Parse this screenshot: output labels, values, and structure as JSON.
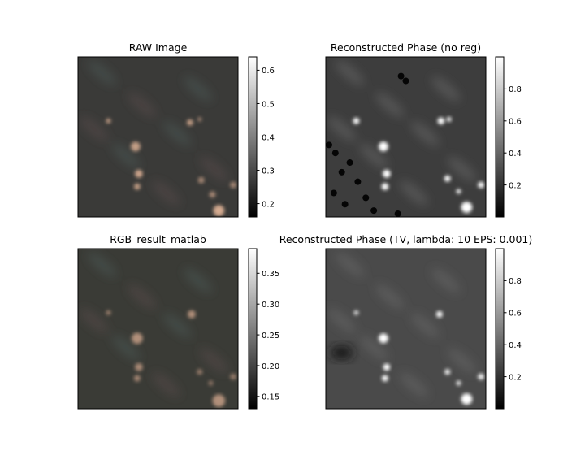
{
  "chart_data": [
    {
      "type": "heatmap",
      "title": "RAW Image",
      "colormap": "image-rgb",
      "colorbar_ticks": [
        0.2,
        0.3,
        0.4,
        0.5,
        0.6
      ],
      "colorbar_range": [
        0.16,
        0.64
      ],
      "background_color": "#3a3a38",
      "spots": [
        {
          "x": 0.19,
          "y": 0.4,
          "r": 0.015,
          "v": 0.9
        },
        {
          "x": 0.36,
          "y": 0.56,
          "r": 0.03,
          "v": 0.85
        },
        {
          "x": 0.7,
          "y": 0.41,
          "r": 0.02,
          "v": 0.85
        },
        {
          "x": 0.76,
          "y": 0.39,
          "r": 0.012,
          "v": 0.8
        },
        {
          "x": 0.38,
          "y": 0.73,
          "r": 0.025,
          "v": 0.9
        },
        {
          "x": 0.37,
          "y": 0.81,
          "r": 0.02,
          "v": 0.85
        },
        {
          "x": 0.77,
          "y": 0.77,
          "r": 0.02,
          "v": 0.7
        },
        {
          "x": 0.84,
          "y": 0.86,
          "r": 0.02,
          "v": 0.7
        },
        {
          "x": 0.97,
          "y": 0.8,
          "r": 0.02,
          "v": 0.7
        },
        {
          "x": 0.88,
          "y": 0.96,
          "r": 0.035,
          "v": 0.95
        }
      ]
    },
    {
      "type": "heatmap",
      "title": "Reconstructed Phase (no reg)",
      "colormap": "gray",
      "colorbar_ticks": [
        0.2,
        0.4,
        0.6,
        0.8
      ],
      "colorbar_range": [
        0.0,
        1.0
      ],
      "background_color": "#3d3d3d",
      "spots": [
        {
          "x": 0.19,
          "y": 0.4,
          "r": 0.02,
          "v": 1.0
        },
        {
          "x": 0.72,
          "y": 0.4,
          "r": 0.022,
          "v": 1.0
        },
        {
          "x": 0.77,
          "y": 0.39,
          "r": 0.015,
          "v": 1.0
        },
        {
          "x": 0.36,
          "y": 0.56,
          "r": 0.03,
          "v": 1.0
        },
        {
          "x": 0.38,
          "y": 0.73,
          "r": 0.025,
          "v": 1.0
        },
        {
          "x": 0.37,
          "y": 0.81,
          "r": 0.022,
          "v": 1.0
        },
        {
          "x": 0.76,
          "y": 0.76,
          "r": 0.02,
          "v": 1.0
        },
        {
          "x": 0.83,
          "y": 0.84,
          "r": 0.015,
          "v": 1.0
        },
        {
          "x": 0.97,
          "y": 0.8,
          "r": 0.02,
          "v": 1.0
        },
        {
          "x": 0.88,
          "y": 0.94,
          "r": 0.035,
          "v": 1.0
        }
      ]
    },
    {
      "type": "heatmap",
      "title": "RGB_result_matlab",
      "colormap": "image-rgb",
      "colorbar_ticks": [
        0.15,
        0.2,
        0.25,
        0.3,
        0.35
      ],
      "colorbar_tick_labels": [
        "0.15",
        "0.20",
        "0.25",
        "0.30",
        "0.35"
      ],
      "colorbar_range": [
        0.13,
        0.39
      ],
      "background_color": "#3a3b36",
      "spots": [
        {
          "x": 0.19,
          "y": 0.4,
          "r": 0.015,
          "v": 0.7
        },
        {
          "x": 0.71,
          "y": 0.41,
          "r": 0.025,
          "v": 0.75
        },
        {
          "x": 0.37,
          "y": 0.56,
          "r": 0.035,
          "v": 0.75
        },
        {
          "x": 0.38,
          "y": 0.74,
          "r": 0.025,
          "v": 0.7
        },
        {
          "x": 0.37,
          "y": 0.81,
          "r": 0.02,
          "v": 0.7
        },
        {
          "x": 0.76,
          "y": 0.77,
          "r": 0.018,
          "v": 0.6
        },
        {
          "x": 0.83,
          "y": 0.84,
          "r": 0.015,
          "v": 0.6
        },
        {
          "x": 0.97,
          "y": 0.8,
          "r": 0.02,
          "v": 0.6
        },
        {
          "x": 0.88,
          "y": 0.95,
          "r": 0.04,
          "v": 0.75
        }
      ]
    },
    {
      "type": "heatmap",
      "title": "Reconstructed Phase (TV, lambda: 10 EPS: 0.001)",
      "colormap": "gray",
      "colorbar_ticks": [
        0.2,
        0.4,
        0.6,
        0.8
      ],
      "colorbar_range": [
        0.0,
        1.0
      ],
      "background_color": "#4a4a4a",
      "spots": [
        {
          "x": 0.19,
          "y": 0.4,
          "r": 0.015,
          "v": 0.9
        },
        {
          "x": 0.71,
          "y": 0.41,
          "r": 0.02,
          "v": 1.0
        },
        {
          "x": 0.36,
          "y": 0.56,
          "r": 0.03,
          "v": 1.0
        },
        {
          "x": 0.38,
          "y": 0.74,
          "r": 0.022,
          "v": 1.0
        },
        {
          "x": 0.37,
          "y": 0.81,
          "r": 0.02,
          "v": 1.0
        },
        {
          "x": 0.76,
          "y": 0.77,
          "r": 0.018,
          "v": 0.95
        },
        {
          "x": 0.83,
          "y": 0.84,
          "r": 0.015,
          "v": 0.95
        },
        {
          "x": 0.97,
          "y": 0.8,
          "r": 0.02,
          "v": 0.95
        },
        {
          "x": 0.88,
          "y": 0.94,
          "r": 0.035,
          "v": 1.0
        }
      ]
    }
  ]
}
